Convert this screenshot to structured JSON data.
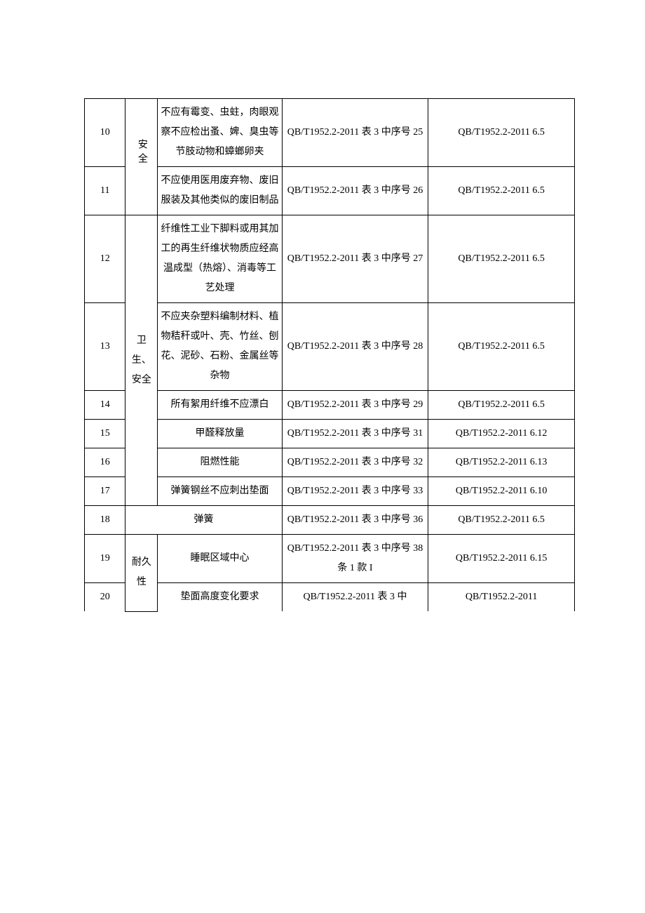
{
  "rows": [
    {
      "num": "10",
      "cat": "安全",
      "desc": "不应有霉变、虫蛀，肉眼观察不应检出蚤、婢、臭虫等节肢动物和蟑螂卵夹",
      "req": "QB/T1952.2-2011 表 3 中序号 25",
      "ref": "QB/T1952.2-2011 6.5"
    },
    {
      "num": "11",
      "desc": "不应使用医用废弃物、废旧服装及其他类似的废旧制品",
      "req": "QB/T1952.2-2011 表 3 中序号 26",
      "ref": "QB/T1952.2-2011 6.5"
    },
    {
      "num": "12",
      "cat": "卫生、安全",
      "desc": "纤维性工业下脚料或用其加工的再生纤维状物质应经高温成型（热熔）、消毒等工艺处理",
      "req": "QB/T1952.2-2011 表 3 中序号 27",
      "ref": "QB/T1952.2-2011 6.5"
    },
    {
      "num": "13",
      "desc": "不应夹杂塑料编制材料、植物秸秆或叶、壳、竹丝、刨花、泥砂、石粉、金属丝等杂物",
      "req": "QB/T1952.2-2011 表 3 中序号 28",
      "ref": "QB/T1952.2-2011 6.5"
    },
    {
      "num": "14",
      "desc": "所有絮用纤维不应漂白",
      "req": "QB/T1952.2-2011 表 3 中序号 29",
      "ref": "QB/T1952.2-2011 6.5"
    },
    {
      "num": "15",
      "desc": "甲醛释放量",
      "req": "QB/T1952.2-2011 表 3 中序号 31",
      "ref": "QB/T1952.2-2011 6.12"
    },
    {
      "num": "16",
      "desc": "阻燃性能",
      "req": "QB/T1952.2-2011 表 3 中序号 32",
      "ref": "QB/T1952.2-2011 6.13"
    },
    {
      "num": "17",
      "desc": "弹簧钢丝不应刺出垫面",
      "req": "QB/T1952.2-2011 表 3 中序号 33",
      "ref": "QB/T1952.2-2011 6.10"
    },
    {
      "num": "18",
      "desc": "弹簧",
      "req": "QB/T1952.2-2011 表 3 中序号 36",
      "ref": "QB/T1952.2-2011 6.5"
    },
    {
      "num": "19",
      "cat": "耐久性",
      "desc": "睡眠区域中心",
      "req": "QB/T1952.2-2011 表 3 中序号 38 条 1 款 I",
      "ref": "QB/T1952.2-2011 6.15"
    },
    {
      "num": "20",
      "desc": "垫面高度变化要求",
      "req": "QB/T1952.2-2011 表 3 中",
      "ref": "QB/T1952.2-2011"
    }
  ]
}
